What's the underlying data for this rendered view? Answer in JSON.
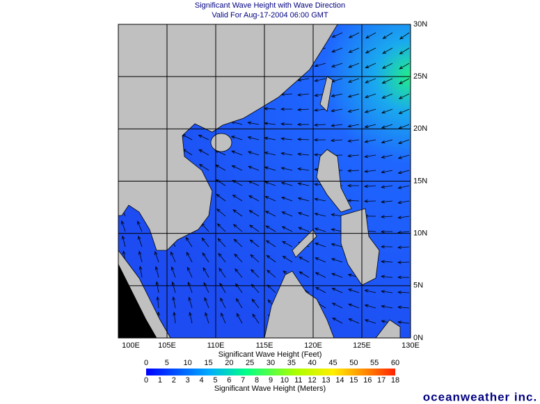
{
  "header": {
    "title": "Significant Wave Height with Wave Direction",
    "subtitle": "Valid For Aug-17-2004 06:00 GMT"
  },
  "map": {
    "lon_labels": [
      "100E",
      "105E",
      "110E",
      "115E",
      "120E",
      "125E",
      "130E"
    ],
    "lat_labels": [
      "0N",
      "5N",
      "10N",
      "15N",
      "20N",
      "25N",
      "30N"
    ]
  },
  "legend": {
    "feet_label": "Significant Wave Height (Feet)",
    "feet_ticks": [
      0,
      5,
      10,
      15,
      20,
      25,
      30,
      35,
      40,
      45,
      50,
      55,
      60
    ],
    "meters_label": "Significant Wave Height (Meters)",
    "meters_ticks": [
      0,
      1,
      2,
      3,
      4,
      5,
      6,
      7,
      8,
      9,
      10,
      11,
      12,
      13,
      14,
      15,
      16,
      17,
      18
    ]
  },
  "footer": {
    "brand": "oceanweather inc."
  }
}
